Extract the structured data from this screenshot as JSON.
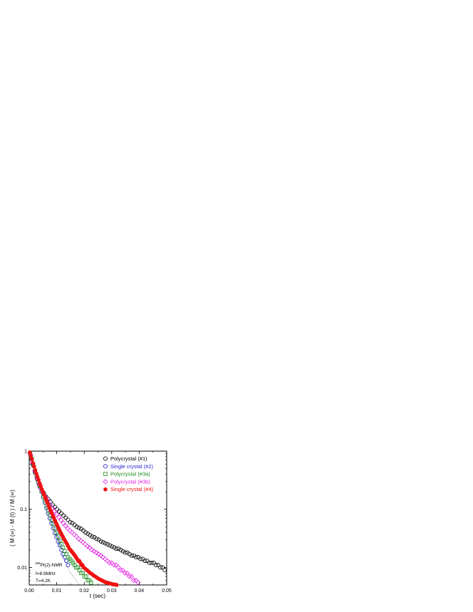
{
  "chart_data": {
    "type": "scatter",
    "xlabel": "t (sec)",
    "ylabel": "( M (∞) - M (t) ) / M (∞)",
    "xlim": [
      0.0,
      0.05
    ],
    "ylim": [
      0.005,
      1.0
    ],
    "y_scale": "log",
    "grid": false,
    "legend_position": "top-right",
    "x_ticks": [
      0.0,
      0.01,
      0.02,
      0.03,
      0.04,
      0.05
    ],
    "x_tick_labels": [
      "0.00",
      "0.01",
      "0.02",
      "0.03",
      "0.04",
      "0.05"
    ],
    "y_ticks": [
      0.01,
      0.1,
      1
    ],
    "y_tick_labels": [
      "0.01",
      "0.1",
      "1"
    ],
    "annotation": {
      "nucleus_sup": "195",
      "nucleus_rest": "Pt(2)-NMR",
      "line2": "f=8.9MHz",
      "line3": "T=4.2K"
    },
    "reference_line": {
      "style": "dotted",
      "color": "#777777",
      "points": [
        [
          0.0,
          1.0
        ],
        [
          0.0033,
          0.29
        ],
        [
          0.0072,
          0.075
        ],
        [
          0.0112,
          0.022
        ],
        [
          0.0148,
          0.0083
        ],
        [
          0.0183,
          0.005
        ]
      ]
    },
    "series": [
      {
        "name": "Polycrystal (#1)",
        "marker": "circle-open",
        "color": "#000000",
        "x": [
          0.0005,
          0.0013,
          0.0021,
          0.0029,
          0.0037,
          0.0045,
          0.0053,
          0.0061,
          0.0069,
          0.0077,
          0.0085,
          0.0093,
          0.0101,
          0.0109,
          0.0117,
          0.0125,
          0.0133,
          0.0141,
          0.0149,
          0.0157,
          0.0165,
          0.0173,
          0.0181,
          0.0189,
          0.0197,
          0.0205,
          0.0213,
          0.0221,
          0.0229,
          0.0237,
          0.0245,
          0.0253,
          0.0261,
          0.0269,
          0.0277,
          0.0285,
          0.0293,
          0.0301,
          0.0309,
          0.0317,
          0.0325,
          0.0333,
          0.0341,
          0.0349,
          0.0357,
          0.0365,
          0.0373,
          0.0381,
          0.0389,
          0.0397,
          0.0405,
          0.0413,
          0.0421,
          0.0429,
          0.0437,
          0.0445,
          0.0453,
          0.0461,
          0.0469,
          0.0477,
          0.0485,
          0.0493
        ],
        "y": [
          0.85,
          0.6,
          0.43,
          0.33,
          0.26,
          0.22,
          0.19,
          0.165,
          0.15,
          0.135,
          0.12,
          0.11,
          0.1,
          0.092,
          0.085,
          0.078,
          0.072,
          0.066,
          0.06,
          0.058,
          0.054,
          0.05,
          0.048,
          0.046,
          0.043,
          0.04,
          0.038,
          0.036,
          0.034,
          0.033,
          0.031,
          0.03,
          0.028,
          0.027,
          0.026,
          0.025,
          0.024,
          0.023,
          0.022,
          0.021,
          0.021,
          0.02,
          0.019,
          0.018,
          0.018,
          0.017,
          0.016,
          0.016,
          0.015,
          0.015,
          0.014,
          0.014,
          0.013,
          0.013,
          0.012,
          0.012,
          0.012,
          0.011,
          0.011,
          0.01,
          0.01,
          0.009
        ]
      },
      {
        "name": "Single crystal (#2)",
        "marker": "circle-open",
        "color": "#1f1fd0",
        "x": [
          0.0003,
          0.0009,
          0.0015,
          0.0021,
          0.0027,
          0.0033,
          0.0039,
          0.0045,
          0.0051,
          0.0057,
          0.0063,
          0.0069,
          0.0075,
          0.0081,
          0.0087,
          0.0093,
          0.0099,
          0.0105,
          0.0111,
          0.0117,
          0.0123,
          0.0129,
          0.0135,
          0.0141
        ],
        "y": [
          0.92,
          0.72,
          0.56,
          0.45,
          0.36,
          0.29,
          0.24,
          0.2,
          0.16,
          0.13,
          0.105,
          0.085,
          0.07,
          0.057,
          0.047,
          0.039,
          0.033,
          0.028,
          0.024,
          0.02,
          0.017,
          0.015,
          0.013,
          0.011
        ]
      },
      {
        "name": "Polycrystal (#3a)",
        "marker": "square-open",
        "color": "#1a8a1a",
        "x": [
          0.0003,
          0.0009,
          0.0015,
          0.0021,
          0.0027,
          0.0033,
          0.0039,
          0.0045,
          0.0051,
          0.0057,
          0.0063,
          0.0069,
          0.0075,
          0.0081,
          0.0087,
          0.0093,
          0.0099,
          0.0105,
          0.0111,
          0.0117,
          0.0123,
          0.0129,
          0.0135,
          0.0141,
          0.0147,
          0.0153,
          0.0159,
          0.0165,
          0.0171,
          0.0177,
          0.0183,
          0.0189,
          0.0195,
          0.0201,
          0.0207,
          0.0213,
          0.0219,
          0.0225
        ],
        "y": [
          0.93,
          0.74,
          0.58,
          0.46,
          0.37,
          0.3,
          0.25,
          0.21,
          0.17,
          0.14,
          0.115,
          0.095,
          0.08,
          0.067,
          0.056,
          0.047,
          0.04,
          0.034,
          0.029,
          0.025,
          0.022,
          0.019,
          0.017,
          0.015,
          0.014,
          0.013,
          0.012,
          0.011,
          0.01,
          0.01,
          0.009,
          0.008,
          0.008,
          0.007,
          0.007,
          0.006,
          0.006,
          0.0055
        ]
      },
      {
        "name": "Polycrystal (#3b)",
        "marker": "diamond-open",
        "color": "#e020e0",
        "x": [
          0.0004,
          0.0012,
          0.002,
          0.0028,
          0.0036,
          0.0044,
          0.0052,
          0.006,
          0.0068,
          0.0076,
          0.0084,
          0.0092,
          0.01,
          0.0108,
          0.0116,
          0.0124,
          0.0132,
          0.014,
          0.0148,
          0.0156,
          0.0164,
          0.0172,
          0.018,
          0.0188,
          0.0196,
          0.0204,
          0.0212,
          0.022,
          0.0228,
          0.0236,
          0.0244,
          0.0252,
          0.026,
          0.0268,
          0.0276,
          0.0284,
          0.0292,
          0.03,
          0.0308,
          0.0316,
          0.0324,
          0.0332,
          0.034,
          0.0348,
          0.0356,
          0.0364,
          0.0372,
          0.038,
          0.0388,
          0.0396
        ],
        "y": [
          0.88,
          0.63,
          0.46,
          0.35,
          0.27,
          0.22,
          0.185,
          0.16,
          0.14,
          0.12,
          0.105,
          0.093,
          0.082,
          0.073,
          0.065,
          0.058,
          0.052,
          0.047,
          0.043,
          0.04,
          0.037,
          0.034,
          0.031,
          0.029,
          0.027,
          0.025,
          0.023,
          0.022,
          0.02,
          0.019,
          0.018,
          0.017,
          0.016,
          0.015,
          0.014,
          0.013,
          0.012,
          0.012,
          0.011,
          0.011,
          0.01,
          0.009,
          0.009,
          0.008,
          0.008,
          0.007,
          0.007,
          0.006,
          0.006,
          0.0055
        ]
      },
      {
        "name": "Single crystal (#4)",
        "marker": "circle-filled",
        "color": "#ee1111",
        "x": [
          0.0002,
          0.0006,
          0.001,
          0.0014,
          0.0018,
          0.0022,
          0.0026,
          0.003,
          0.0034,
          0.0038,
          0.0042,
          0.0046,
          0.005,
          0.0054,
          0.0058,
          0.0062,
          0.0066,
          0.007,
          0.0074,
          0.0078,
          0.0082,
          0.0086,
          0.009,
          0.0094,
          0.0098,
          0.0102,
          0.0106,
          0.011,
          0.0114,
          0.0118,
          0.0122,
          0.0126,
          0.013,
          0.0134,
          0.0138,
          0.0142,
          0.0146,
          0.015,
          0.0154,
          0.0158,
          0.0162,
          0.0166,
          0.017,
          0.0174,
          0.0178,
          0.0182,
          0.0186,
          0.019,
          0.0194,
          0.0198,
          0.0204,
          0.021,
          0.0216,
          0.0222,
          0.0228,
          0.0234,
          0.024,
          0.0246,
          0.0252,
          0.0258,
          0.0264,
          0.027,
          0.0276,
          0.0282,
          0.0288,
          0.0294,
          0.03,
          0.0306,
          0.0312,
          0.0318
        ],
        "y": [
          0.95,
          0.83,
          0.72,
          0.62,
          0.54,
          0.47,
          0.41,
          0.36,
          0.32,
          0.28,
          0.25,
          0.22,
          0.2,
          0.18,
          0.16,
          0.145,
          0.13,
          0.117,
          0.105,
          0.095,
          0.086,
          0.078,
          0.071,
          0.064,
          0.058,
          0.053,
          0.048,
          0.044,
          0.04,
          0.037,
          0.034,
          0.031,
          0.029,
          0.027,
          0.025,
          0.023,
          0.021,
          0.02,
          0.019,
          0.018,
          0.017,
          0.016,
          0.015,
          0.014,
          0.013,
          0.013,
          0.012,
          0.011,
          0.011,
          0.01,
          0.0095,
          0.009,
          0.0085,
          0.008,
          0.0077,
          0.0073,
          0.007,
          0.0067,
          0.0064,
          0.0062,
          0.006,
          0.0058,
          0.0056,
          0.0055,
          0.0054,
          0.0053,
          0.0052,
          0.0051,
          0.0051,
          0.005
        ]
      }
    ]
  }
}
